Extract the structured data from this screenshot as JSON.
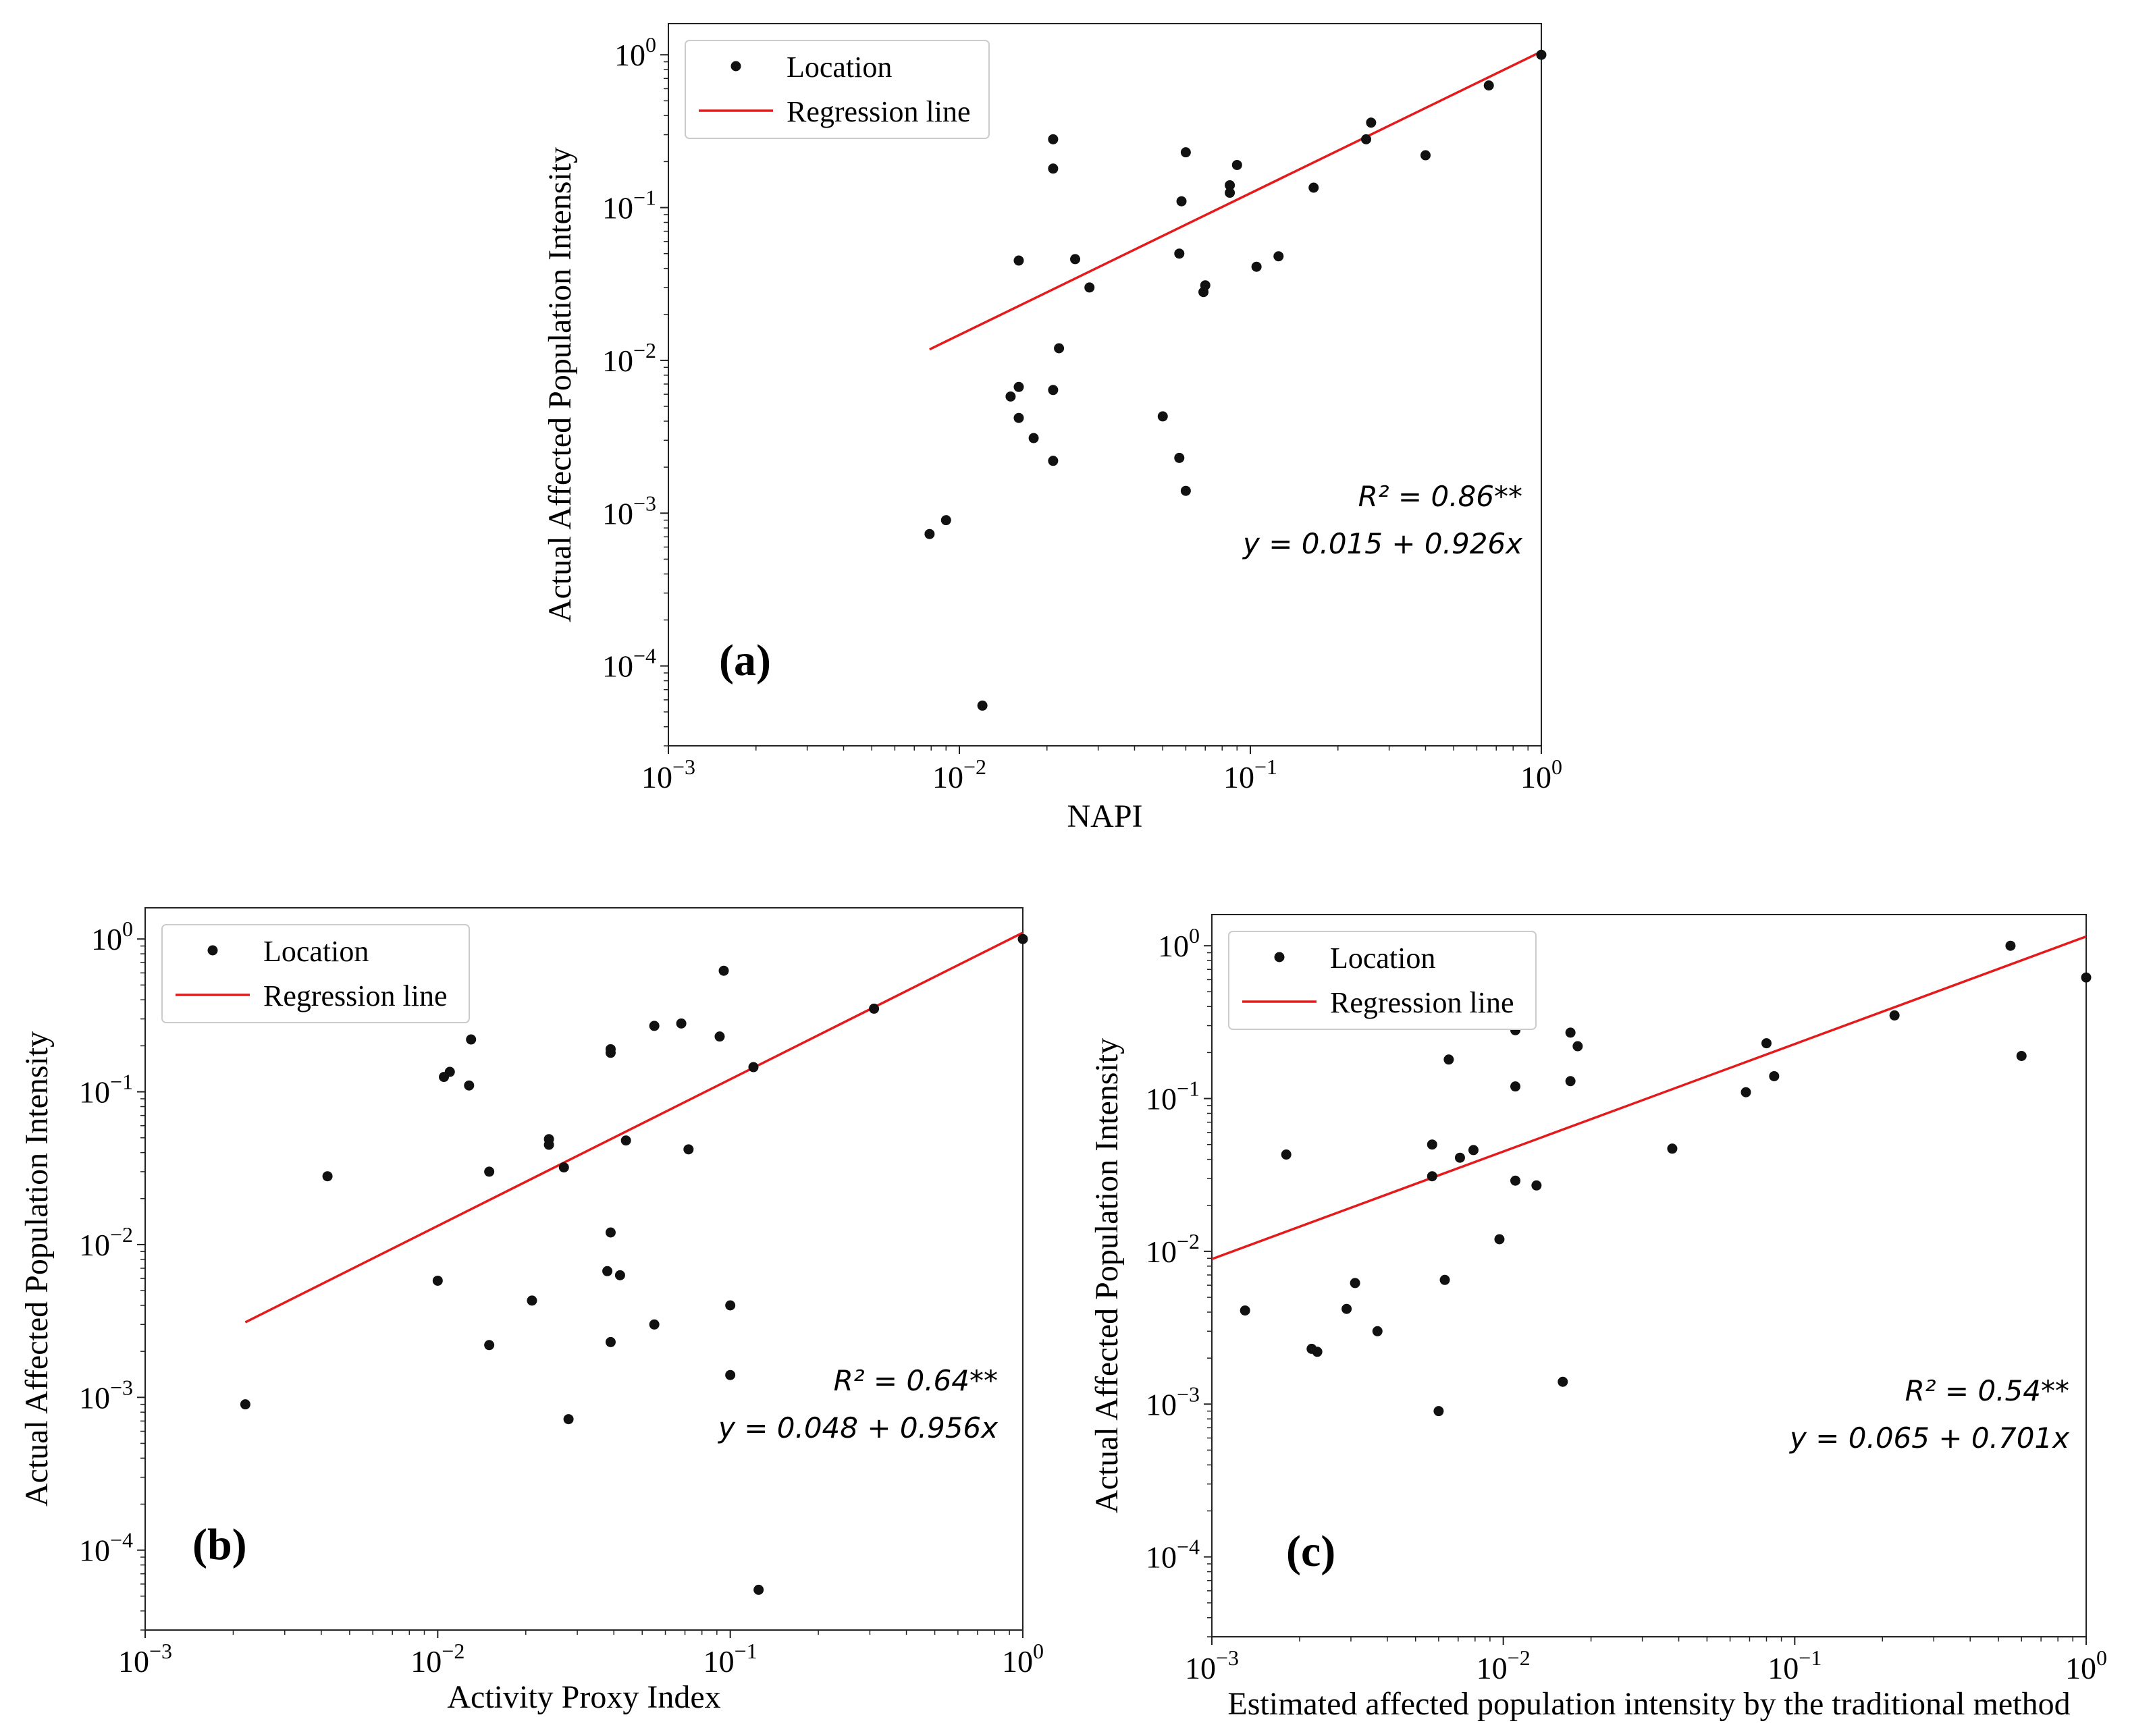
{
  "colors": {
    "regression": "#e41a1c",
    "points": "#111111",
    "frame": "#222222"
  },
  "chart_data": [
    {
      "type": "scatter",
      "panel": "a",
      "panel_label": "(a)",
      "xlabel": "NAPI",
      "ylabel": "Actual Affected Population Intensity",
      "xscale": "log",
      "yscale": "log",
      "xlim": [
        0.001,
        1.0
      ],
      "ylim": [
        3e-05,
        1.6
      ],
      "x_ticks": [
        {
          "value": 0.001,
          "base": "10",
          "exp": "−3"
        },
        {
          "value": 0.01,
          "base": "10",
          "exp": "−2"
        },
        {
          "value": 0.1,
          "base": "10",
          "exp": "−1"
        },
        {
          "value": 1,
          "base": "10",
          "exp": "0"
        }
      ],
      "y_ticks": [
        {
          "value": 0.0001,
          "base": "10",
          "exp": "−4"
        },
        {
          "value": 0.001,
          "base": "10",
          "exp": "−3"
        },
        {
          "value": 0.01,
          "base": "10",
          "exp": "−2"
        },
        {
          "value": 0.1,
          "base": "10",
          "exp": "−1"
        },
        {
          "value": 1,
          "base": "10",
          "exp": "0"
        }
      ],
      "legend": {
        "location": "upper-left",
        "entries": [
          "Location",
          "Regression line"
        ]
      },
      "annotation": {
        "r2_label": "R² = 0.86**",
        "equation": "y = 0.015 + 0.926x"
      },
      "regression": {
        "x": [
          0.0079,
          1.0
        ],
        "y": [
          0.0118,
          1.05
        ]
      },
      "points": [
        [
          1.0,
          1.0
        ],
        [
          0.66,
          0.63
        ],
        [
          0.4,
          0.22
        ],
        [
          0.26,
          0.36
        ],
        [
          0.25,
          0.28
        ],
        [
          0.165,
          0.135
        ],
        [
          0.125,
          0.048
        ],
        [
          0.105,
          0.041
        ],
        [
          0.09,
          0.19
        ],
        [
          0.085,
          0.14
        ],
        [
          0.085,
          0.125
        ],
        [
          0.07,
          0.031
        ],
        [
          0.069,
          0.028
        ],
        [
          0.06,
          0.23
        ],
        [
          0.058,
          0.11
        ],
        [
          0.057,
          0.05
        ],
        [
          0.06,
          0.0014
        ],
        [
          0.057,
          0.0023
        ],
        [
          0.05,
          0.0043
        ],
        [
          0.028,
          0.03
        ],
        [
          0.025,
          0.046
        ],
        [
          0.022,
          0.012
        ],
        [
          0.021,
          0.28
        ],
        [
          0.021,
          0.18
        ],
        [
          0.021,
          0.0064
        ],
        [
          0.021,
          0.0022
        ],
        [
          0.018,
          0.0031
        ],
        [
          0.016,
          0.045
        ],
        [
          0.016,
          0.0067
        ],
        [
          0.016,
          0.0042
        ],
        [
          0.015,
          0.0058
        ],
        [
          0.012,
          5.5e-05
        ],
        [
          0.009,
          0.0009
        ],
        [
          0.0079,
          0.00073
        ]
      ]
    },
    {
      "type": "scatter",
      "panel": "b",
      "panel_label": "(b)",
      "xlabel": "Activity Proxy Index",
      "ylabel": "Actual Affected Population Intensity",
      "xscale": "log",
      "yscale": "log",
      "xlim": [
        0.001,
        1.0
      ],
      "ylim": [
        3e-05,
        1.6
      ],
      "x_ticks": [
        {
          "value": 0.001,
          "base": "10",
          "exp": "−3"
        },
        {
          "value": 0.01,
          "base": "10",
          "exp": "−2"
        },
        {
          "value": 0.1,
          "base": "10",
          "exp": "−1"
        },
        {
          "value": 1,
          "base": "10",
          "exp": "0"
        }
      ],
      "y_ticks": [
        {
          "value": 0.0001,
          "base": "10",
          "exp": "−4"
        },
        {
          "value": 0.001,
          "base": "10",
          "exp": "−3"
        },
        {
          "value": 0.01,
          "base": "10",
          "exp": "−2"
        },
        {
          "value": 0.1,
          "base": "10",
          "exp": "−1"
        },
        {
          "value": 1,
          "base": "10",
          "exp": "0"
        }
      ],
      "legend": {
        "location": "upper-left",
        "entries": [
          "Location",
          "Regression line"
        ]
      },
      "annotation": {
        "r2_label": "R² = 0.64**",
        "equation": "y = 0.048 + 0.956x"
      },
      "regression": {
        "x": [
          0.0022,
          1.0
        ],
        "y": [
          0.0031,
          1.1
        ]
      },
      "points": [
        [
          1.0,
          1.0
        ],
        [
          0.31,
          0.35
        ],
        [
          0.12,
          0.145
        ],
        [
          0.1,
          0.004
        ],
        [
          0.1,
          0.0014
        ],
        [
          0.125,
          5.5e-05
        ],
        [
          0.095,
          0.62
        ],
        [
          0.092,
          0.23
        ],
        [
          0.068,
          0.28
        ],
        [
          0.055,
          0.27
        ],
        [
          0.072,
          0.042
        ],
        [
          0.055,
          0.003
        ],
        [
          0.044,
          0.048
        ],
        [
          0.042,
          0.0063
        ],
        [
          0.039,
          0.19
        ],
        [
          0.039,
          0.18
        ],
        [
          0.039,
          0.012
        ],
        [
          0.038,
          0.0067
        ],
        [
          0.039,
          0.0023
        ],
        [
          0.027,
          0.032
        ],
        [
          0.028,
          0.00072
        ],
        [
          0.024,
          0.049
        ],
        [
          0.024,
          0.045
        ],
        [
          0.021,
          0.0043
        ],
        [
          0.015,
          0.03
        ],
        [
          0.015,
          0.0022
        ],
        [
          0.013,
          0.22
        ],
        [
          0.0128,
          0.11
        ],
        [
          0.011,
          0.135
        ],
        [
          0.0105,
          0.125
        ],
        [
          0.01,
          0.0058
        ],
        [
          0.0042,
          0.028
        ],
        [
          0.0022,
          0.0009
        ]
      ]
    },
    {
      "type": "scatter",
      "panel": "c",
      "panel_label": "(c)",
      "xlabel": "Estimated affected population intensity by the traditional method",
      "ylabel": "Actual Affected Population Intensity",
      "xscale": "log",
      "yscale": "log",
      "xlim": [
        0.001,
        1.0
      ],
      "ylim": [
        3e-05,
        1.6
      ],
      "x_ticks": [
        {
          "value": 0.001,
          "base": "10",
          "exp": "−3"
        },
        {
          "value": 0.01,
          "base": "10",
          "exp": "−2"
        },
        {
          "value": 0.1,
          "base": "10",
          "exp": "−1"
        },
        {
          "value": 1,
          "base": "10",
          "exp": "0"
        }
      ],
      "y_ticks": [
        {
          "value": 0.0001,
          "base": "10",
          "exp": "−4"
        },
        {
          "value": 0.001,
          "base": "10",
          "exp": "−3"
        },
        {
          "value": 0.01,
          "base": "10",
          "exp": "−2"
        },
        {
          "value": 0.1,
          "base": "10",
          "exp": "−1"
        },
        {
          "value": 1,
          "base": "10",
          "exp": "0"
        }
      ],
      "legend": {
        "location": "upper-left",
        "entries": [
          "Location",
          "Regression line"
        ]
      },
      "annotation": {
        "r2_label": "R² = 0.54**",
        "equation": "y = 0.065 + 0.701x"
      },
      "regression": {
        "x": [
          0.001,
          1.0
        ],
        "y": [
          0.0089,
          1.15
        ]
      },
      "points": [
        [
          1.0,
          0.62
        ],
        [
          0.55,
          1.0
        ],
        [
          0.6,
          0.19
        ],
        [
          0.22,
          0.35
        ],
        [
          0.085,
          0.14
        ],
        [
          0.08,
          0.23
        ],
        [
          0.068,
          0.11
        ],
        [
          0.038,
          0.047
        ],
        [
          0.018,
          0.22
        ],
        [
          0.017,
          0.27
        ],
        [
          0.017,
          0.13
        ],
        [
          0.016,
          0.0014
        ],
        [
          0.013,
          0.027
        ],
        [
          0.011,
          0.28
        ],
        [
          0.011,
          0.12
        ],
        [
          0.011,
          0.029
        ],
        [
          0.0097,
          0.012
        ],
        [
          0.0079,
          0.046
        ],
        [
          0.0071,
          0.041
        ],
        [
          0.0065,
          0.18
        ],
        [
          0.0063,
          0.0065
        ],
        [
          0.0057,
          0.05
        ],
        [
          0.0057,
          0.031
        ],
        [
          0.006,
          0.0009
        ],
        [
          0.0037,
          0.003
        ],
        [
          0.0031,
          0.0062
        ],
        [
          0.0029,
          0.0042
        ],
        [
          0.0023,
          0.0022
        ],
        [
          0.0022,
          0.0023
        ],
        [
          0.0018,
          0.043
        ],
        [
          0.0013,
          0.0041
        ]
      ]
    }
  ]
}
